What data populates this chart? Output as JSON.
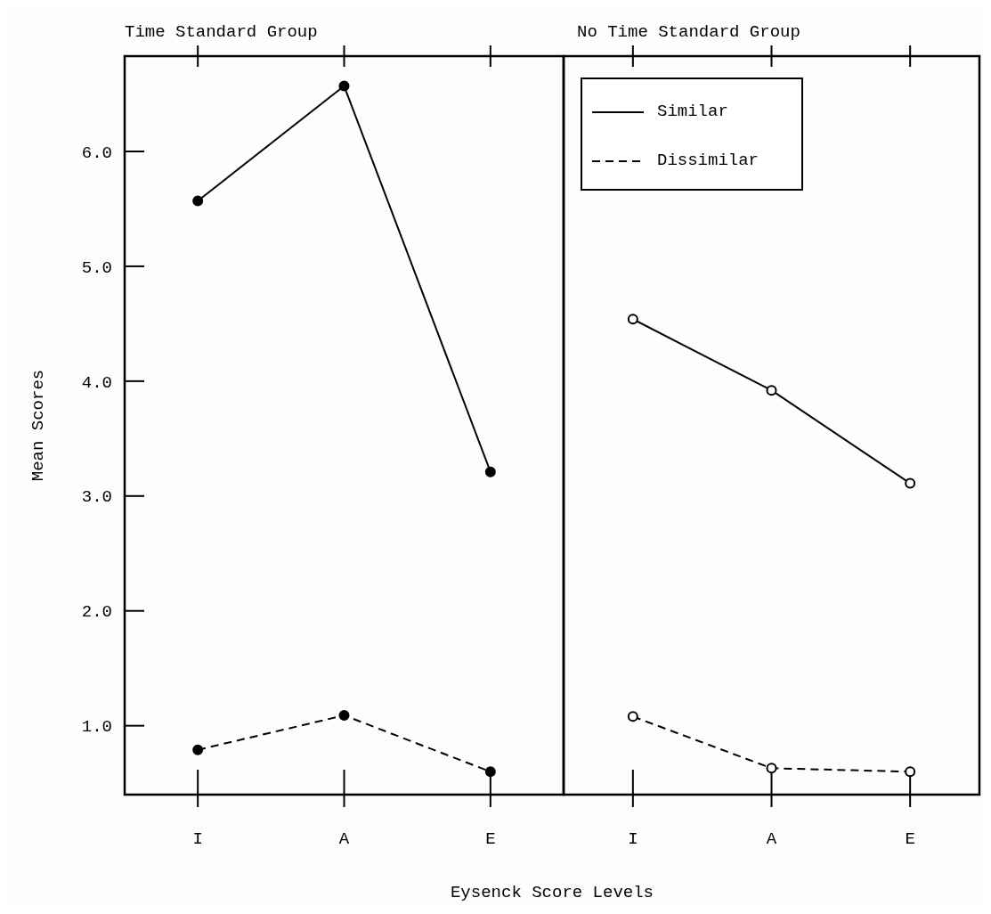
{
  "chart_data": [
    {
      "type": "line",
      "title": "Time Standard Group",
      "xlabel": "Eysenck Score Levels",
      "ylabel": "Mean Scores",
      "categories": [
        "I",
        "A",
        "E"
      ],
      "ylim": [
        0.4,
        6.83
      ],
      "yticks": [
        {
          "value": 1,
          "label": "1.0"
        },
        {
          "value": 2,
          "label": "2.0"
        },
        {
          "value": 3,
          "label": "3.0"
        },
        {
          "value": 4,
          "label": "4.0"
        },
        {
          "value": 5,
          "label": "5.0"
        },
        {
          "value": 6,
          "label": "6.0"
        }
      ],
      "marker": "circle",
      "series": [
        {
          "color": "#000000",
          "line_style": "solid",
          "values": [
            5.57,
            6.57,
            3.21
          ]
        },
        {
          "color": "#000000",
          "line_style": "dashed",
          "values": [
            0.79,
            1.09,
            0.6
          ]
        }
      ]
    },
    {
      "type": "line",
      "title": "No Time Standard Group",
      "categories": [
        "I",
        "A",
        "E"
      ],
      "ylim": [
        0.4,
        6.83
      ],
      "tick_labels": "x",
      "marker": "circle",
      "legend": "top left",
      "series": [
        {
          "name": "Similar",
          "color": "#000000",
          "line_style": "solid",
          "values": [
            4.54,
            3.92,
            3.11
          ]
        },
        {
          "name": "Dissimilar",
          "color": "#000000",
          "line_style": "dashed",
          "values": [
            1.08,
            0.63,
            0.6
          ]
        }
      ]
    }
  ]
}
